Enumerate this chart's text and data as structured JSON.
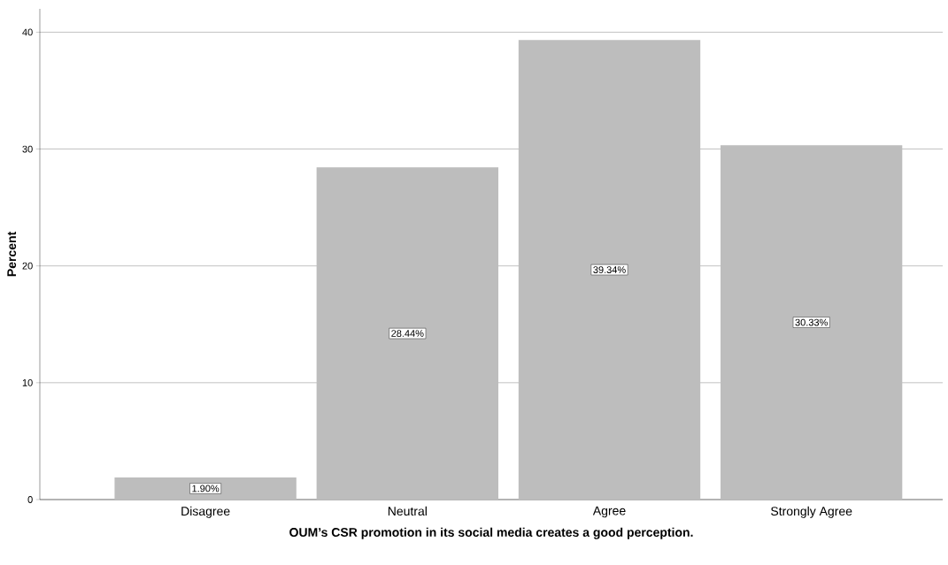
{
  "chart_data": {
    "type": "bar",
    "xlabel": "OUM’s CSR promotion in its social media creates a good perception.",
    "ylabel": "Percent",
    "categories": [
      "Disagree",
      "Neutral",
      "Agree",
      "Strongly Agree"
    ],
    "values": [
      1.9,
      28.44,
      39.34,
      30.33
    ],
    "value_labels": [
      "1.90%",
      "28.44%",
      "39.34%",
      "30.33%"
    ],
    "color": "#bdbdbd",
    "ylim": [
      0,
      42
    ],
    "yticks": [
      0,
      10,
      20,
      30,
      40
    ],
    "grid": "y"
  }
}
